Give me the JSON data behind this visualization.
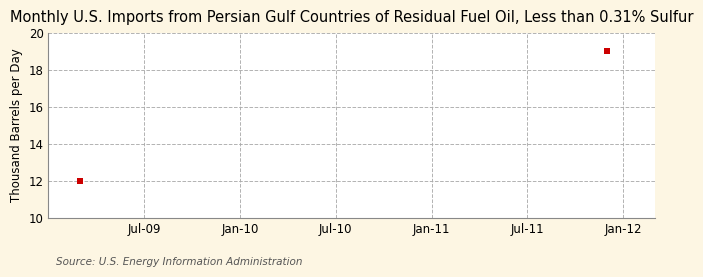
{
  "title": "Monthly U.S. Imports from Persian Gulf Countries of Residual Fuel Oil, Less than 0.31% Sulfur",
  "ylabel": "Thousand Barrels per Day",
  "source": "Source: U.S. Energy Information Administration",
  "ylim": [
    10,
    20
  ],
  "yticks": [
    10,
    12,
    14,
    16,
    18,
    20
  ],
  "xtick_labels": [
    "Jul-09",
    "Jan-10",
    "Jul-10",
    "Jan-11",
    "Jul-11",
    "Jan-12"
  ],
  "xtick_positions": [
    6,
    12,
    18,
    24,
    30,
    36
  ],
  "xlim": [
    0,
    38
  ],
  "data_x": [
    2,
    35
  ],
  "data_y": [
    12,
    19
  ],
  "marker_color": "#cc0000",
  "marker": "s",
  "marker_size": 4,
  "plot_bg_color": "#ffffff",
  "fig_bg_color": "#fdf6e3",
  "grid_color": "#aaaaaa",
  "spine_color": "#888888",
  "title_fontsize": 10.5,
  "ylabel_fontsize": 8.5,
  "tick_fontsize": 8.5,
  "source_fontsize": 7.5
}
